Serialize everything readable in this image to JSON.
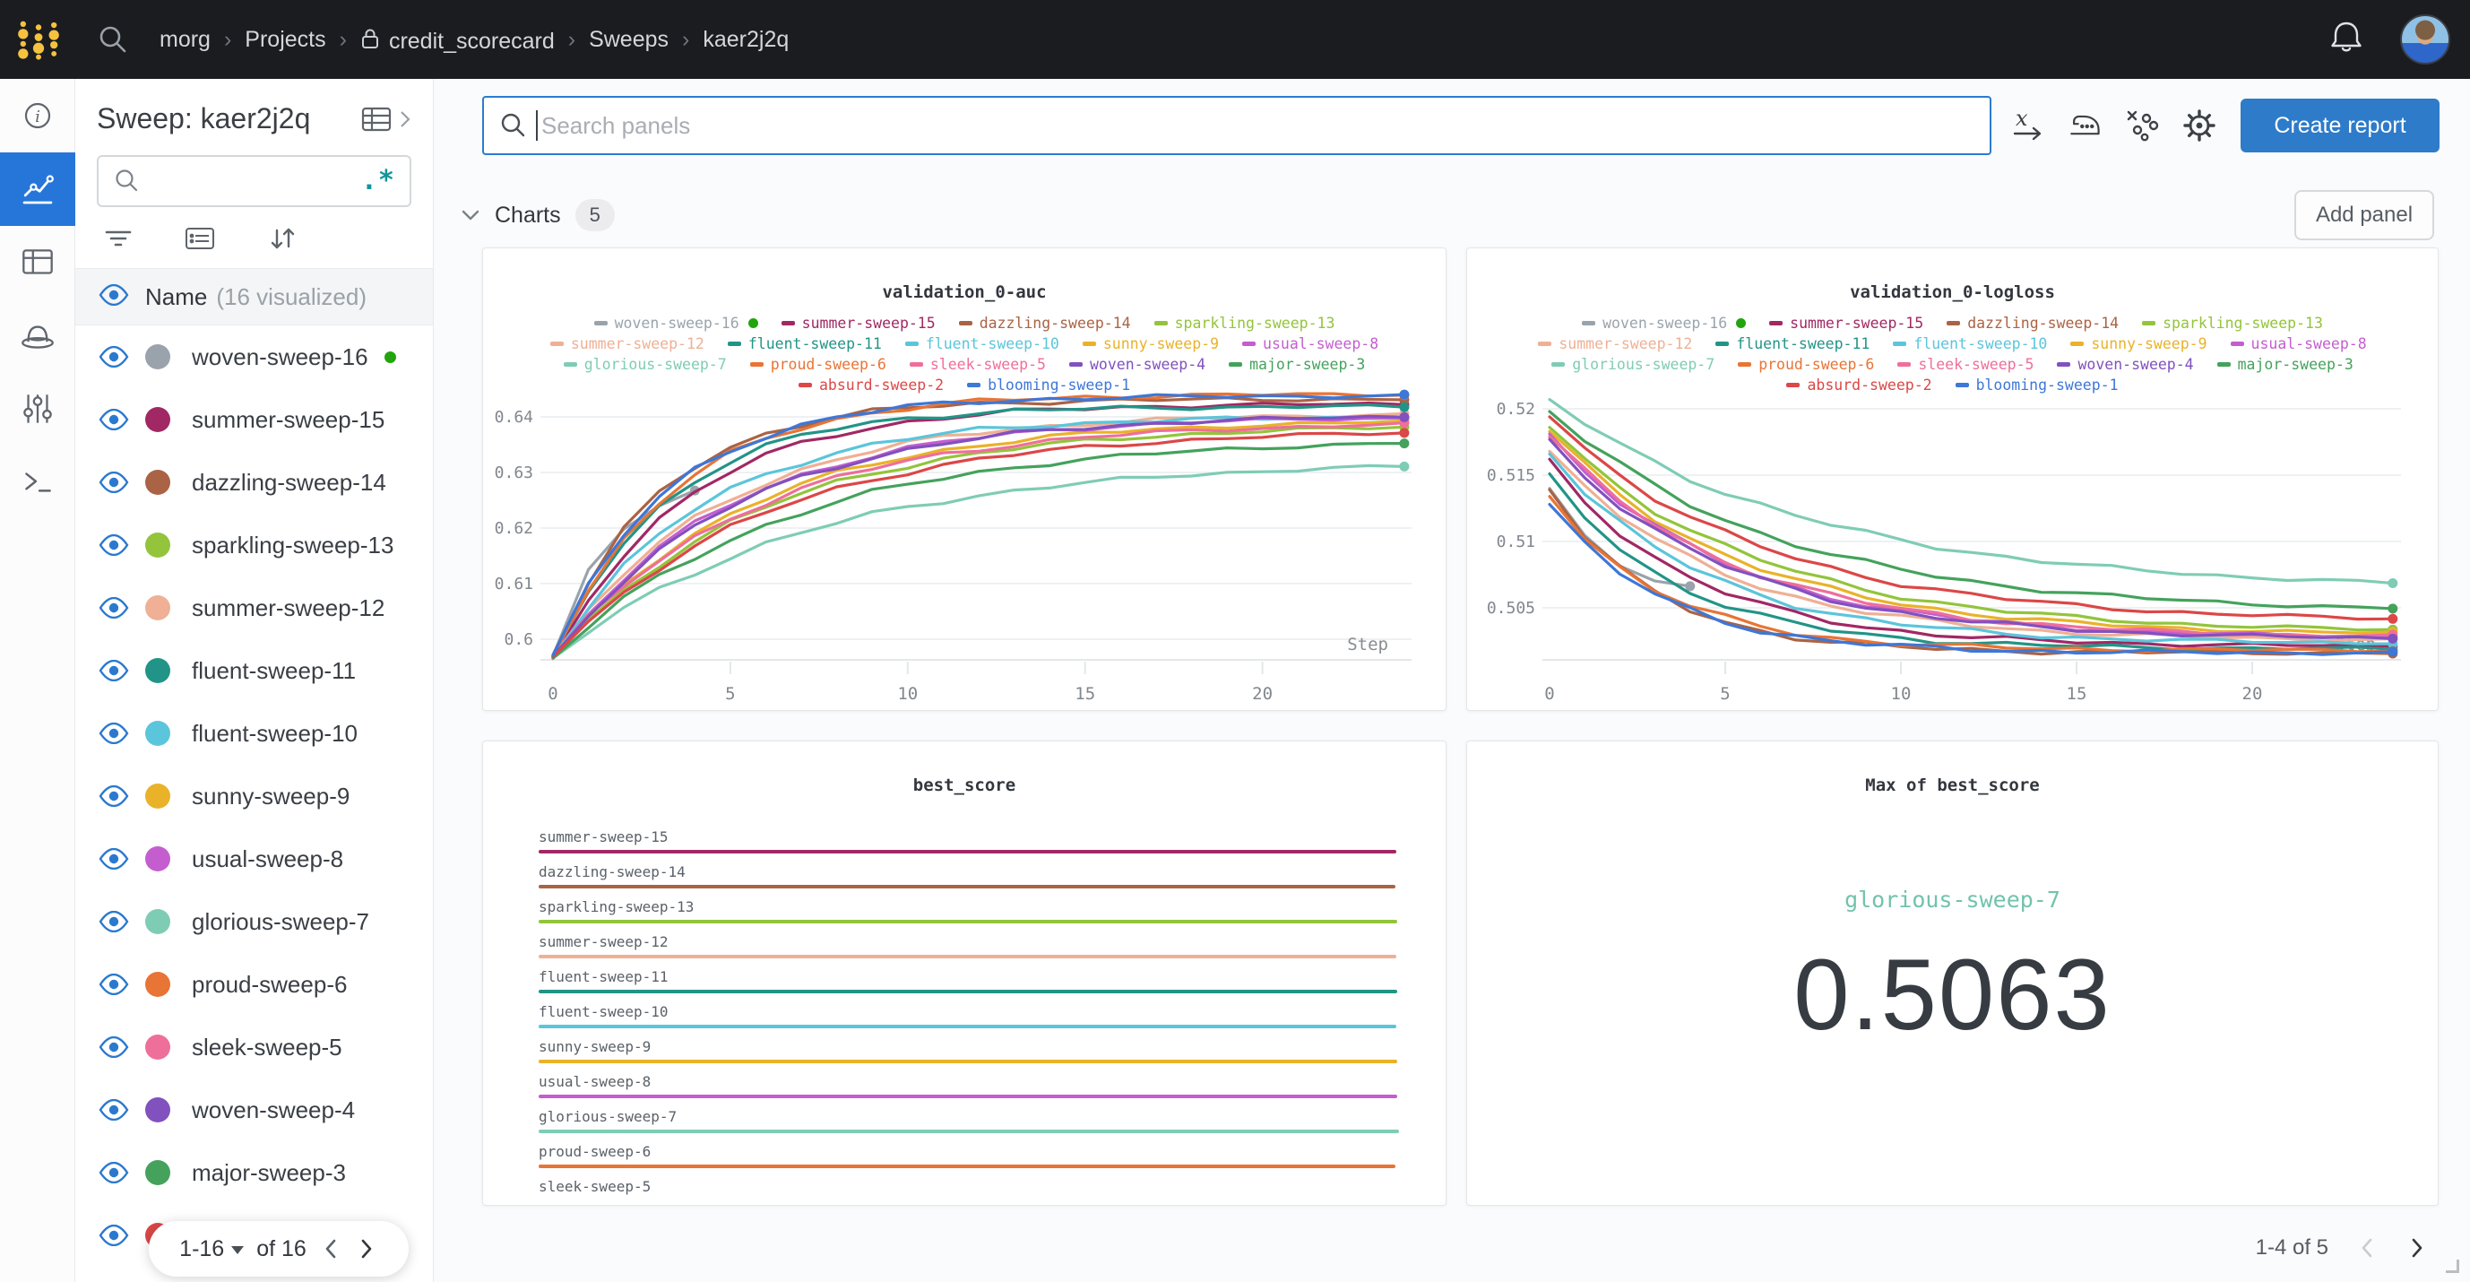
{
  "navbar": {
    "breadcrumb": [
      {
        "label": "morg"
      },
      {
        "label": "Projects"
      },
      {
        "label": "credit_scorecard",
        "lock": true
      },
      {
        "label": "Sweeps"
      },
      {
        "label": "kaer2j2q"
      }
    ],
    "separator": "›"
  },
  "rail": {
    "items": [
      "info",
      "workspace",
      "table",
      "sweep-agent",
      "settings-sliders",
      "terminal"
    ],
    "active_index": 1,
    "accent": "#2676d9"
  },
  "sidebar": {
    "title": "Sweep: kaer2j2q",
    "search_placeholder": "",
    "regex_icon": ".*",
    "header": {
      "label": "Name",
      "note": "(16 visualized)"
    },
    "runs": [
      {
        "name": "woven-sweep-16",
        "color": "#9aa3ab",
        "running": true
      },
      {
        "name": "summer-sweep-15",
        "color": "#a12864"
      },
      {
        "name": "dazzling-sweep-14",
        "color": "#aa6344"
      },
      {
        "name": "sparkling-sweep-13",
        "color": "#93c43b"
      },
      {
        "name": "summer-sweep-12",
        "color": "#efb095"
      },
      {
        "name": "fluent-sweep-11",
        "color": "#229487"
      },
      {
        "name": "fluent-sweep-10",
        "color": "#5bc5db"
      },
      {
        "name": "sunny-sweep-9",
        "color": "#e9b229"
      },
      {
        "name": "usual-sweep-8",
        "color": "#c45ecf"
      },
      {
        "name": "glorious-sweep-7",
        "color": "#7fccb5"
      },
      {
        "name": "proud-sweep-6",
        "color": "#e87435"
      },
      {
        "name": "sleek-sweep-5",
        "color": "#ee6f9a"
      },
      {
        "name": "woven-sweep-4",
        "color": "#8151be"
      },
      {
        "name": "major-sweep-3",
        "color": "#44a25c"
      },
      {
        "name": "absurd-sweep-2",
        "color": "#dc4747"
      },
      {
        "name": "blooming-sweep-1",
        "color": "#3d77d8"
      }
    ],
    "pagination": {
      "range": "1-16",
      "of": "of 16"
    }
  },
  "toolbar": {
    "search_placeholder": "Search panels",
    "create_report": "Create report"
  },
  "section": {
    "title": "Charts",
    "count": "5",
    "add_panel": "Add panel"
  },
  "footer": {
    "pagination": "1-4 of 5"
  },
  "chart_data": [
    {
      "type": "line",
      "title": "validation_0-auc",
      "xlabel": "Step",
      "x_range": [
        0,
        24
      ],
      "xticks": [
        0,
        5,
        10,
        15,
        20
      ],
      "yticks": [
        0.6,
        0.61,
        0.62,
        0.63,
        0.64
      ],
      "ylim": [
        0.5965,
        0.646
      ],
      "grid": true,
      "legend_position": "top",
      "legend_rows": [
        4,
        5,
        5,
        2
      ],
      "noise": 1,
      "series": [
        {
          "name": "woven-sweep-16",
          "color": "#9aa3ab",
          "y0": 0.597,
          "y1": 0.629,
          "tau": 1.6,
          "end_step": 4,
          "running": true
        },
        {
          "name": "summer-sweep-15",
          "color": "#a12864",
          "y0": 0.5968,
          "y1": 0.6424,
          "tau": 3.8
        },
        {
          "name": "dazzling-sweep-14",
          "color": "#aa6344",
          "y0": 0.5972,
          "y1": 0.6432,
          "tau": 3.0
        },
        {
          "name": "sparkling-sweep-13",
          "color": "#93c43b",
          "y0": 0.5966,
          "y1": 0.6388,
          "tau": 5.8
        },
        {
          "name": "summer-sweep-12",
          "color": "#efb095",
          "y0": 0.5969,
          "y1": 0.6407,
          "tau": 4.8
        },
        {
          "name": "fluent-sweep-11",
          "color": "#229487",
          "y0": 0.5971,
          "y1": 0.6419,
          "tau": 3.3
        },
        {
          "name": "fluent-sweep-10",
          "color": "#5bc5db",
          "y0": 0.5967,
          "y1": 0.6401,
          "tau": 4.2
        },
        {
          "name": "sunny-sweep-9",
          "color": "#e9b229",
          "y0": 0.5965,
          "y1": 0.6396,
          "tau": 5.4
        },
        {
          "name": "usual-sweep-8",
          "color": "#c45ecf",
          "y0": 0.5968,
          "y1": 0.6402,
          "tau": 5.0
        },
        {
          "name": "glorious-sweep-7",
          "color": "#7fccb5",
          "y0": 0.5966,
          "y1": 0.6323,
          "tau": 7.0
        },
        {
          "name": "proud-sweep-6",
          "color": "#e87435",
          "y0": 0.597,
          "y1": 0.6441,
          "tau": 3.4
        },
        {
          "name": "sleek-sweep-5",
          "color": "#ee6f9a",
          "y0": 0.5967,
          "y1": 0.6392,
          "tau": 5.6
        },
        {
          "name": "woven-sweep-4",
          "color": "#8151be",
          "y0": 0.5969,
          "y1": 0.6405,
          "tau": 5.2
        },
        {
          "name": "major-sweep-3",
          "color": "#44a25c",
          "y0": 0.5966,
          "y1": 0.6363,
          "tau": 6.5
        },
        {
          "name": "absurd-sweep-2",
          "color": "#dc4747",
          "y0": 0.5968,
          "y1": 0.6379,
          "tau": 6.0
        },
        {
          "name": "blooming-sweep-1",
          "color": "#3d77d8",
          "y0": 0.5971,
          "y1": 0.6438,
          "tau": 3.2
        }
      ]
    },
    {
      "type": "line",
      "title": "validation_0-logloss",
      "xlabel": "Step",
      "x_range": [
        0,
        24
      ],
      "xticks": [
        0,
        5,
        10,
        15,
        20
      ],
      "yticks": [
        0.505,
        0.51,
        0.515,
        0.52
      ],
      "ylim": [
        0.501,
        0.5215
      ],
      "grid": true,
      "legend_position": "top",
      "legend_rows": [
        4,
        5,
        5,
        2
      ],
      "noise": 0.4,
      "series": [
        {
          "name": "woven-sweep-16",
          "color": "#9aa3ab",
          "y0": 0.514,
          "y1": 0.5058,
          "tau": 1.6,
          "end_step": 4,
          "running": true
        },
        {
          "name": "summer-sweep-15",
          "color": "#a12864",
          "y0": 0.5162,
          "y1": 0.5021,
          "tau": 4.0
        },
        {
          "name": "dazzling-sweep-14",
          "color": "#aa6344",
          "y0": 0.5139,
          "y1": 0.5016,
          "tau": 3.0
        },
        {
          "name": "sparkling-sweep-13",
          "color": "#93c43b",
          "y0": 0.5186,
          "y1": 0.5031,
          "tau": 5.8
        },
        {
          "name": "summer-sweep-12",
          "color": "#efb095",
          "y0": 0.5168,
          "y1": 0.5025,
          "tau": 4.8
        },
        {
          "name": "fluent-sweep-11",
          "color": "#229487",
          "y0": 0.5151,
          "y1": 0.5019,
          "tau": 3.6
        },
        {
          "name": "fluent-sweep-10",
          "color": "#5bc5db",
          "y0": 0.5166,
          "y1": 0.5023,
          "tau": 4.4
        },
        {
          "name": "sunny-sweep-9",
          "color": "#e9b229",
          "y0": 0.5183,
          "y1": 0.5029,
          "tau": 5.4
        },
        {
          "name": "usual-sweep-8",
          "color": "#c45ecf",
          "y0": 0.5181,
          "y1": 0.5027,
          "tau": 5.0
        },
        {
          "name": "glorious-sweep-7",
          "color": "#7fccb5",
          "y0": 0.5207,
          "y1": 0.5063,
          "tau": 7.5
        },
        {
          "name": "proud-sweep-6",
          "color": "#e87435",
          "y0": 0.5134,
          "y1": 0.5018,
          "tau": 3.2
        },
        {
          "name": "sleek-sweep-5",
          "color": "#ee6f9a",
          "y0": 0.5179,
          "y1": 0.5027,
          "tau": 5.2
        },
        {
          "name": "woven-sweep-4",
          "color": "#8151be",
          "y0": 0.5177,
          "y1": 0.5026,
          "tau": 5.0
        },
        {
          "name": "major-sweep-3",
          "color": "#44a25c",
          "y0": 0.5198,
          "y1": 0.5046,
          "tau": 6.5
        },
        {
          "name": "absurd-sweep-2",
          "color": "#dc4747",
          "y0": 0.5194,
          "y1": 0.5039,
          "tau": 6.0
        },
        {
          "name": "blooming-sweep-1",
          "color": "#3d77d8",
          "y0": 0.5128,
          "y1": 0.5016,
          "tau": 3.2
        }
      ]
    },
    {
      "type": "bar",
      "title": "best_score",
      "orientation": "horizontal",
      "categories": [
        "summer-sweep-15",
        "dazzling-sweep-14",
        "sparkling-sweep-13",
        "summer-sweep-12",
        "fluent-sweep-11",
        "fluent-sweep-10",
        "sunny-sweep-9",
        "usual-sweep-8",
        "glorious-sweep-7",
        "proud-sweep-6",
        "sleek-sweep-5"
      ],
      "values": [
        0.5048,
        0.504,
        0.5055,
        0.5047,
        0.505,
        0.5049,
        0.5054,
        0.5055,
        0.5063,
        0.504,
        0.5045
      ],
      "colors": [
        "#a12864",
        "#aa6344",
        "#93c43b",
        "#efb095",
        "#229487",
        "#5bc5db",
        "#e9b229",
        "#c45ecf",
        "#7fccb5",
        "#e87435",
        "#ee6f9a"
      ]
    },
    {
      "type": "scalar",
      "title": "Max of best_score",
      "run": "glorious-sweep-7",
      "run_color": "#72c3ab",
      "value": "0.5063"
    }
  ]
}
